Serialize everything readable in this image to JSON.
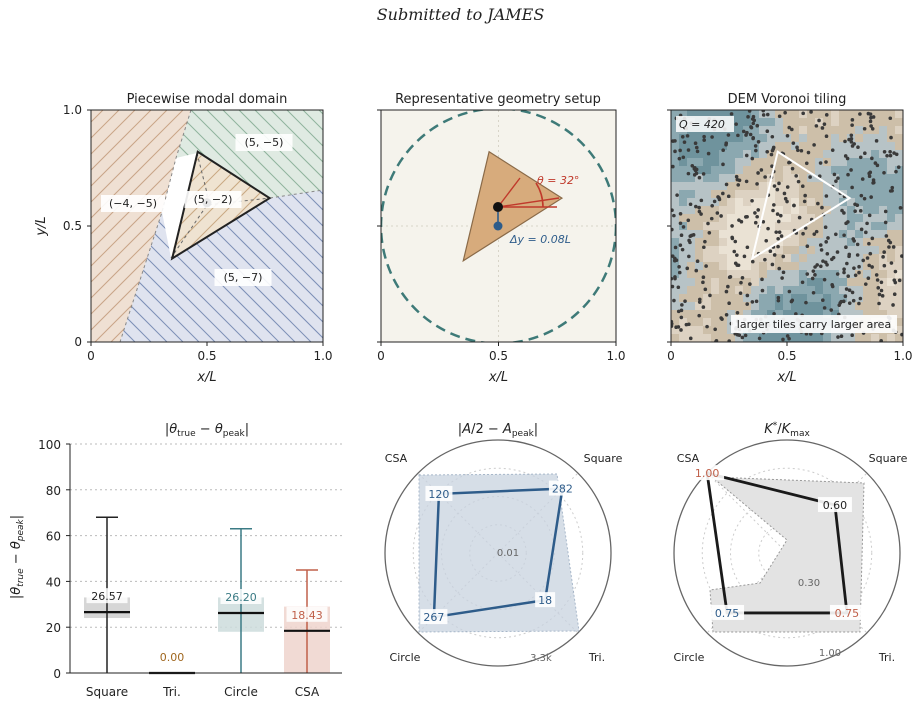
{
  "header": {
    "text": "Submitted to JAMES"
  },
  "chart_data": [
    {
      "type": "diagram",
      "title": "Piecewise modal domain",
      "xlabel": "x/L",
      "ylabel": "y/L",
      "xlim": [
        0,
        1
      ],
      "ylim": [
        0,
        1
      ],
      "xticks": [
        "0",
        "0.5",
        "1.0"
      ],
      "yticks": [
        "0",
        "0.5",
        "1.0"
      ],
      "regions": [
        {
          "label": "(−4, −5)",
          "color": "#efe0d3",
          "hatch": "#c9a487"
        },
        {
          "label": "(5, −5)",
          "color": "#dfeae2",
          "hatch": "#8fb39c"
        },
        {
          "label": "(5, −7)",
          "color": "#dfe3ef",
          "hatch": "#7c8fb6"
        },
        {
          "label": "(5, −2)",
          "color": "#efe3d1",
          "hatch": "#c9a882"
        }
      ],
      "triangle": [
        [
          0.35,
          0.36
        ],
        [
          0.46,
          0.82
        ],
        [
          0.77,
          0.62
        ]
      ],
      "centroid": [
        0.5,
        0.6
      ]
    },
    {
      "type": "diagram",
      "title": "Representative geometry setup",
      "xlabel": "x/L",
      "xlim": [
        0,
        1
      ],
      "ylim": [
        0,
        1
      ],
      "xticks": [
        "0",
        "0.5",
        "1.0"
      ],
      "triangle": [
        [
          0.35,
          0.35
        ],
        [
          0.46,
          0.82
        ],
        [
          0.77,
          0.62
        ]
      ],
      "angle_label": "θ = 32°",
      "offset_label": "Δy = 0.08L",
      "circle": {
        "center": [
          0.5,
          0.5
        ],
        "radius": 0.5,
        "style": "dashed"
      },
      "colors": {
        "triangle": "#d7ab7c",
        "angle": "#c0392b",
        "offset": "#2e5c8a",
        "circle": "#3e7a78",
        "background": "#f5f3ec"
      }
    },
    {
      "type": "heatmap",
      "title": "DEM Voronoi tiling",
      "xlabel": "x/L",
      "xlim": [
        0,
        1
      ],
      "ylim": [
        0,
        1
      ],
      "xticks": [
        "0",
        "0.5",
        "1.0"
      ],
      "annotation_q": "Q = 420",
      "annotation_note": "larger tiles carry larger area",
      "triangle": [
        [
          0.35,
          0.36
        ],
        [
          0.46,
          0.82
        ],
        [
          0.77,
          0.62
        ]
      ],
      "palette": [
        "#eae2d4",
        "#ddd2c2",
        "#cdbfa9",
        "#b7c3c6",
        "#8ba8b0",
        "#6f939d"
      ]
    },
    {
      "type": "box",
      "title": "|θtrue − θpeak|",
      "ylabel": "|θtrue − θpeak|",
      "ylim": [
        0,
        100
      ],
      "yticks": [
        "0",
        "20",
        "40",
        "60",
        "80",
        "100"
      ],
      "categories": [
        "Square",
        "Tri.",
        "Circle",
        "CSA"
      ],
      "medians": [
        26.57,
        0.0,
        26.2,
        18.43
      ],
      "median_labels": [
        "26.57",
        "0.00",
        "26.20",
        "18.43"
      ],
      "q1": [
        24,
        0,
        18,
        0
      ],
      "q3": [
        33,
        0.3,
        33,
        29
      ],
      "whisker_low": [
        0,
        0,
        0,
        0
      ],
      "whisker_high": [
        68,
        0,
        63,
        45
      ],
      "colors": [
        "#222222",
        "#a0671f",
        "#3b7b85",
        "#c0604a"
      ],
      "box_colors": [
        "#cfcfcf",
        "#efe2d0",
        "#cddcdc",
        "#efd3cd"
      ]
    },
    {
      "type": "radar",
      "title": "|A/2 − Apeak|",
      "categories": [
        "Square",
        "Tri.",
        "Circle",
        "CSA"
      ],
      "values": [
        282,
        18,
        267,
        120
      ],
      "value_labels": [
        "282",
        "18",
        "267",
        "120"
      ],
      "r_scale": "log",
      "r_ticks": [
        "0.01",
        "3.3k"
      ],
      "colors": {
        "line": "#2e5c8a",
        "fill": "#c9d3e0"
      }
    },
    {
      "type": "radar",
      "title": "K*/Kmax",
      "categories": [
        "Square",
        "Tri.",
        "Circle",
        "CSA"
      ],
      "values": [
        0.6,
        0.75,
        0.75,
        1.0
      ],
      "value_labels": [
        "0.60",
        "0.75",
        "0.75",
        "1.00"
      ],
      "r_ticks": [
        "0.30",
        "1.00"
      ],
      "colors": {
        "line": "#1a1a1a",
        "fill": "#e3e3e3"
      }
    }
  ]
}
